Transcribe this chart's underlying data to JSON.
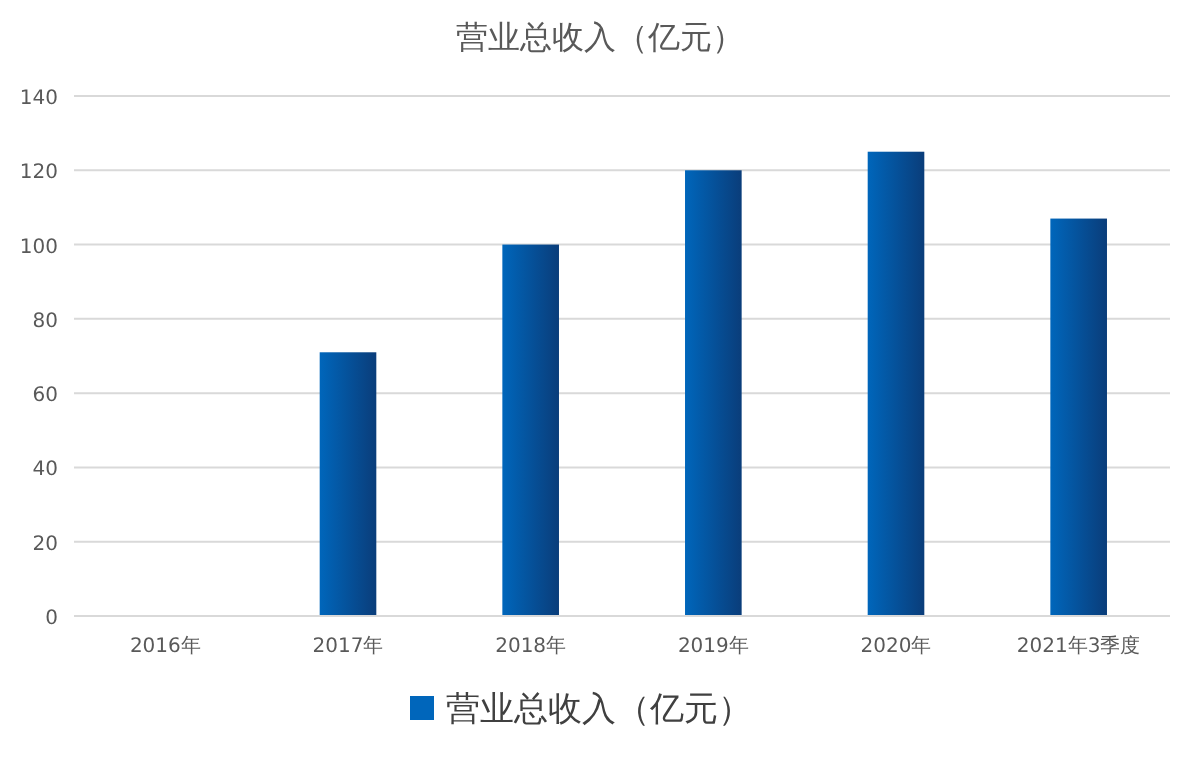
{
  "chart_data": {
    "type": "bar",
    "title": "营业总收入（亿元）",
    "categories": [
      "2016年",
      "2017年",
      "2018年",
      "2019年",
      "2020年",
      "2021年3季度"
    ],
    "series": [
      {
        "name": "营业总收入（亿元）",
        "color": "#0066bb",
        "values": [
          null,
          71,
          100,
          120,
          125,
          107
        ]
      }
    ],
    "ylim": [
      0,
      140
    ],
    "yticks": [
      0,
      20,
      40,
      60,
      80,
      100,
      120,
      140
    ],
    "grid": "y",
    "legend": "bottom"
  }
}
